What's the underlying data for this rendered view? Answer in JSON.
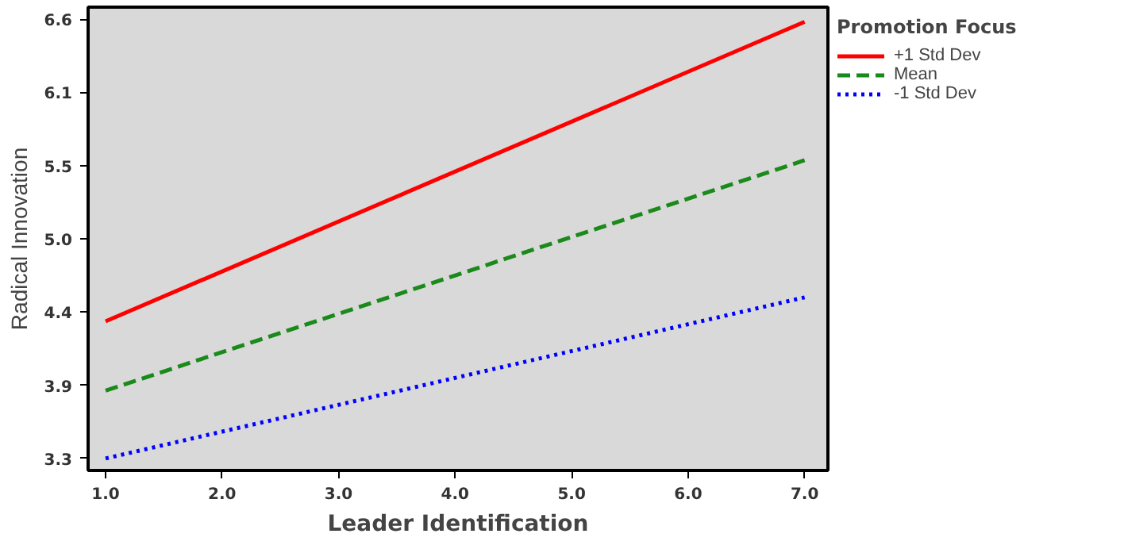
{
  "chart_data": {
    "type": "line",
    "xlabel": "Leader Identification",
    "ylabel": "Radical Innovation",
    "legend_title": "Promotion Focus",
    "x": [
      1.0,
      7.0
    ],
    "series": [
      {
        "name": "+1 Std Dev",
        "color": "#ff0000",
        "line_style": "solid",
        "values": [
          4.33,
          6.58
        ]
      },
      {
        "name": "Mean",
        "color": "#1a8a1a",
        "line_style": "dashed",
        "values": [
          3.81,
          5.54
        ]
      },
      {
        "name": "-1 Std Dev",
        "color": "#0000ff",
        "line_style": "dotted",
        "values": [
          3.3,
          4.51
        ]
      }
    ],
    "xlim": [
      0.85,
      7.2
    ],
    "ylim": [
      3.21,
      6.69
    ],
    "xticks": [
      {
        "value": 1,
        "label": "1.0"
      },
      {
        "value": 2,
        "label": "2.0"
      },
      {
        "value": 3,
        "label": "3.0"
      },
      {
        "value": 4,
        "label": "4.0"
      },
      {
        "value": 5,
        "label": "5.0"
      },
      {
        "value": 6,
        "label": "6.0"
      },
      {
        "value": 7,
        "label": "7.0"
      }
    ],
    "yticks": [
      3.3,
      {
        "value": 3.85,
        "label": "3.9"
      },
      4.4,
      {
        "value": 4.95,
        "label": "5.0"
      },
      5.5,
      {
        "value": 6.05,
        "label": "6.1"
      },
      6.6
    ],
    "grid": false,
    "legend": "top right",
    "marker": "none"
  }
}
